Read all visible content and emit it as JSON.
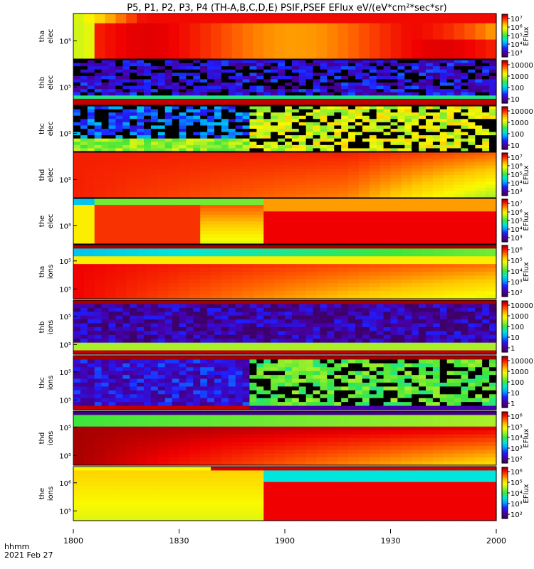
{
  "chart_data": {
    "type": "heatmap",
    "title": "P5, P1, P2, P3, P4 (TH-A,B,C,D,E) PSIF,PSEF EFlux eV/(eV*cm²*sec*sr)",
    "x_ticks": [
      "1800",
      "1830",
      "1900",
      "1930",
      "2000"
    ],
    "x_label_line1": "hhmm",
    "x_label_line2": "2021 Feb 27",
    "panels": [
      {
        "name": "tha elec",
        "probe": "tha",
        "species": "elec",
        "y_tick": "10⁵",
        "colorbar": {
          "label": "EFlux",
          "ticks": [
            "10⁷",
            "10⁶",
            "10⁵",
            "10⁴",
            "10³"
          ]
        }
      },
      {
        "name": "thb elec",
        "probe": "thb",
        "species": "elec",
        "y_tick": "10⁵",
        "colorbar": {
          "label": "",
          "ticks": [
            "10000",
            "1000",
            "100",
            "10"
          ]
        }
      },
      {
        "name": "thc elec",
        "probe": "thc",
        "species": "elec",
        "y_tick": "10⁵",
        "colorbar": {
          "label": "",
          "ticks": [
            "10000",
            "1000",
            "100",
            "10"
          ]
        }
      },
      {
        "name": "thd elec",
        "probe": "thd",
        "species": "elec",
        "y_tick": "10⁵",
        "colorbar": {
          "label": "EFlux",
          "ticks": [
            "10⁷",
            "10⁶",
            "10⁵",
            "10⁴",
            "10³"
          ]
        }
      },
      {
        "name": "the elec",
        "probe": "the",
        "species": "elec",
        "y_tick": "10⁵",
        "colorbar": {
          "label": "EFlux",
          "ticks": [
            "10⁷",
            "10⁶",
            "10⁵",
            "10⁴",
            "10³"
          ]
        }
      },
      {
        "name": "tha ions",
        "probe": "tha",
        "species": "ions",
        "y_ticks": [
          "10⁵",
          "10⁵"
        ],
        "colorbar": {
          "label": "EFlux",
          "ticks": [
            "10⁶",
            "10⁵",
            "10⁴",
            "10³",
            "10²"
          ]
        }
      },
      {
        "name": "thb ions",
        "probe": "thb",
        "species": "ions",
        "y_ticks": [
          "10⁵",
          "10⁵"
        ],
        "colorbar": {
          "label": "",
          "ticks": [
            "10000",
            "1000",
            "100",
            "10",
            "1"
          ]
        }
      },
      {
        "name": "thc ions",
        "probe": "thc",
        "species": "ions",
        "y_ticks": [
          "10⁵",
          "10⁵"
        ],
        "colorbar": {
          "label": "",
          "ticks": [
            "10000",
            "1000",
            "100",
            "10",
            "1"
          ]
        }
      },
      {
        "name": "thd ions",
        "probe": "thd",
        "species": "ions",
        "y_ticks": [
          "10⁵",
          "10⁵"
        ],
        "colorbar": {
          "label": "EFlux",
          "ticks": [
            "10⁶",
            "10⁵",
            "10⁴",
            "10³",
            "10²"
          ]
        }
      },
      {
        "name": "the ions",
        "probe": "the",
        "species": "ions",
        "y_ticks": [
          "10⁶",
          "10⁵"
        ],
        "colorbar": {
          "label": "EFlux",
          "ticks": [
            "10⁶",
            "10⁵",
            "10⁴",
            "10³",
            "10²"
          ]
        }
      }
    ]
  }
}
